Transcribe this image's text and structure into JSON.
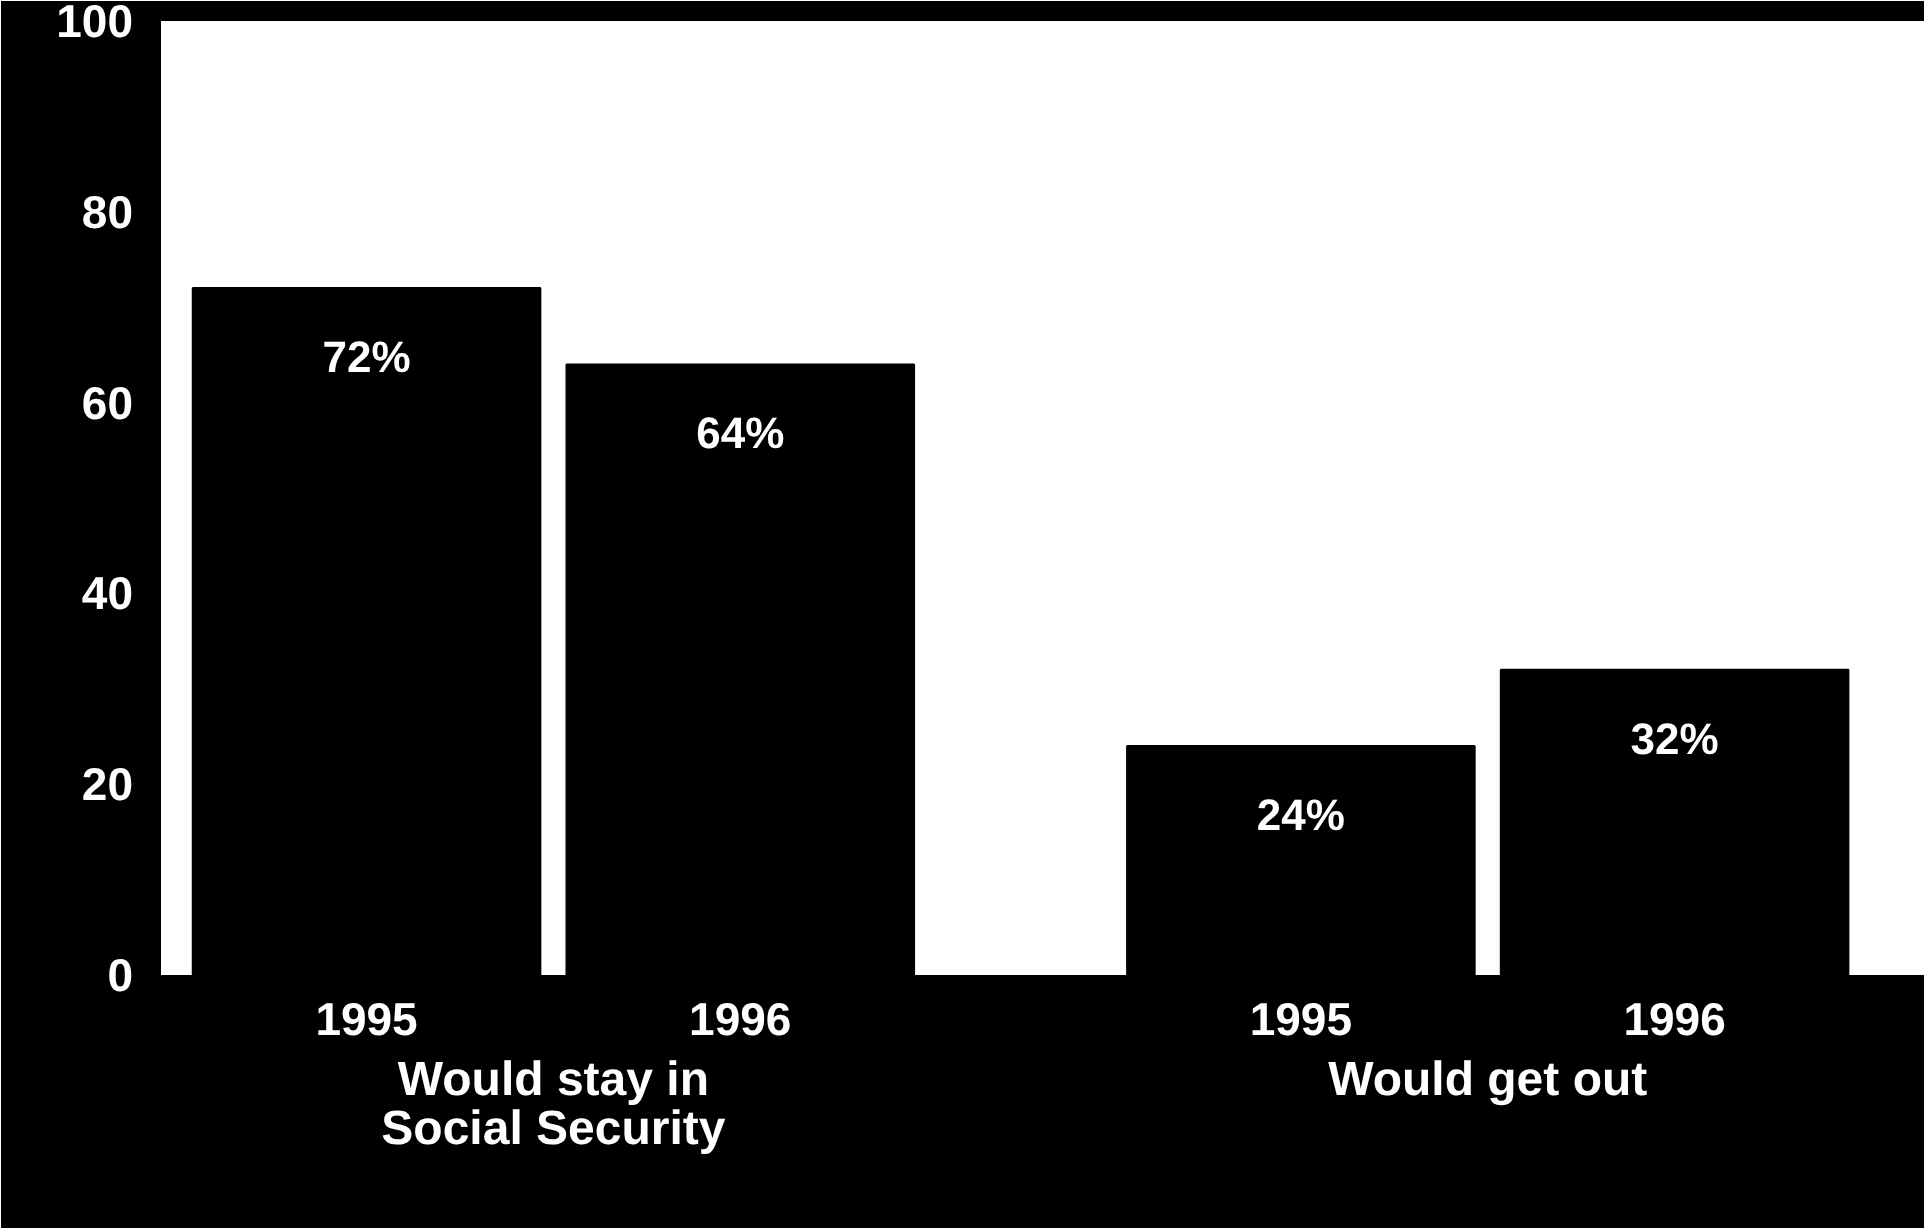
{
  "chart_data": {
    "type": "bar",
    "categories": [
      "1995",
      "1996",
      "1995",
      "1996"
    ],
    "values": [
      72,
      64,
      24,
      32
    ],
    "color": "#000000",
    "value_labels": [
      "72%",
      "64%",
      "24%",
      "32%"
    ],
    "ylim": [
      0,
      100
    ],
    "yticks": [
      0,
      20,
      40,
      60,
      80,
      100
    ],
    "annotations": [
      "Would stay in\nSocial Security",
      "Would get out"
    ],
    "grid": false
  }
}
